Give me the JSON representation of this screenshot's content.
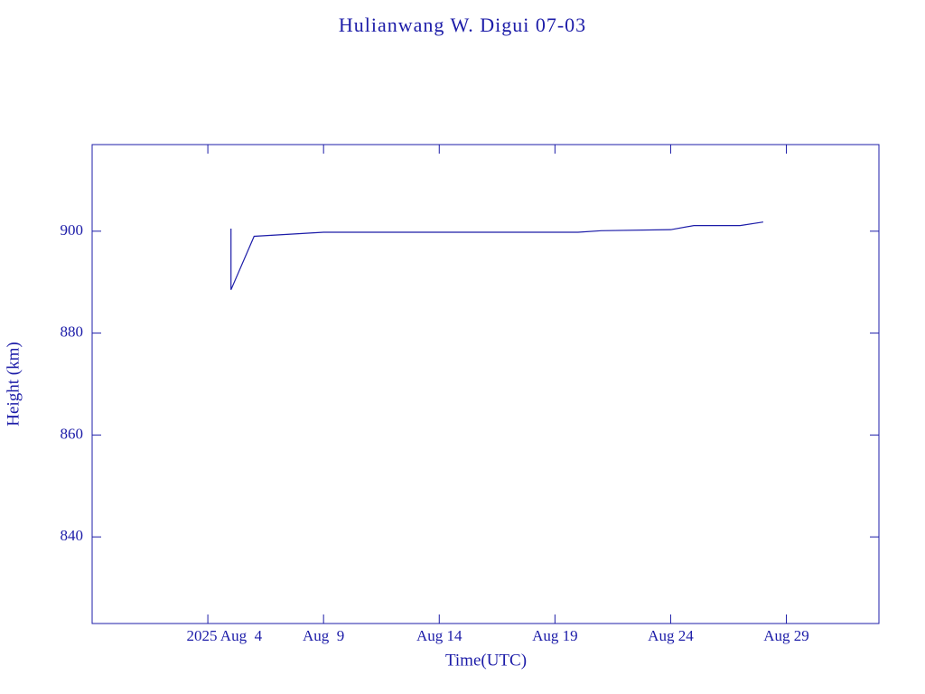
{
  "chart_data": {
    "type": "line",
    "title": "Hulianwang W. Digui 07-03",
    "x_label": "Time(UTC)",
    "y_label": "Height (km)",
    "color": "#1c1ca8",
    "grid": false,
    "x": [
      "2025-08-05",
      "2025-08-05",
      "2025-08-06",
      "2025-08-09",
      "2025-08-20",
      "2025-08-21",
      "2025-08-24",
      "2025-08-25",
      "2025-08-27",
      "2025-08-28"
    ],
    "values": [
      900.5,
      888.5,
      899.0,
      899.8,
      899.8,
      900.1,
      900.3,
      901.1,
      901.1,
      901.8
    ],
    "xlim": [
      "2025-07-30",
      "2025-09-02"
    ],
    "xticks": [
      {
        "value": "2025-08-04",
        "label": "2025 Aug  4"
      },
      {
        "value": "2025-08-09",
        "label": "Aug  9"
      },
      {
        "value": "2025-08-14",
        "label": "Aug 14"
      },
      {
        "value": "2025-08-19",
        "label": "Aug 19"
      },
      {
        "value": "2025-08-24",
        "label": "Aug 24"
      },
      {
        "value": "2025-08-29",
        "label": "Aug 29"
      }
    ],
    "ylim": [
      823,
      917
    ],
    "yticks": [
      840,
      860,
      880,
      900
    ]
  }
}
